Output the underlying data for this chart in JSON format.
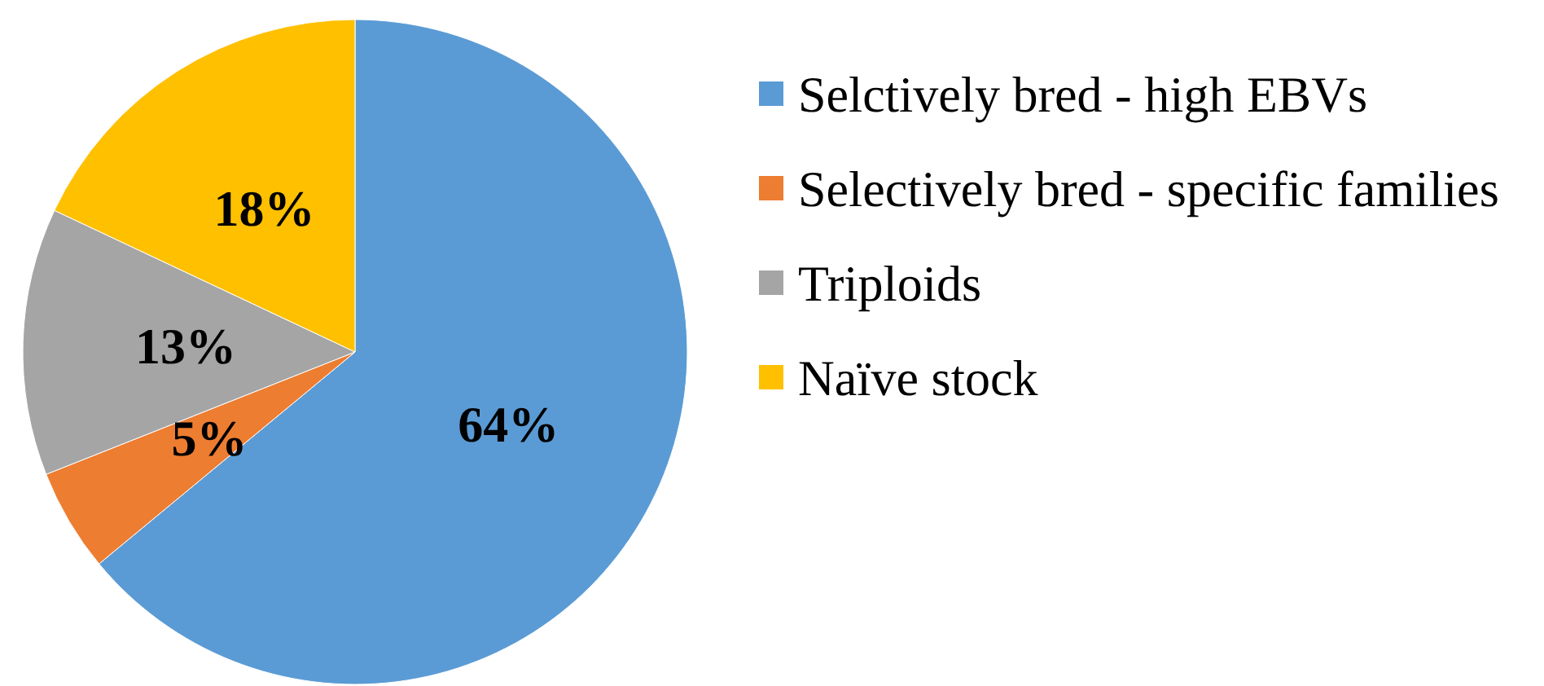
{
  "chart_data": {
    "type": "pie",
    "categories": [
      "Selctively bred - high EBVs",
      "Selectively bred - specific families",
      "Triploids",
      "Naïve stock"
    ],
    "values": [
      64,
      5,
      13,
      18
    ],
    "colors": [
      "#5b9bd5",
      "#ed7d31",
      "#a5a5a5",
      "#ffc000"
    ],
    "value_labels": [
      "64%",
      "5%",
      "13%",
      "18%"
    ],
    "legend": "right"
  }
}
